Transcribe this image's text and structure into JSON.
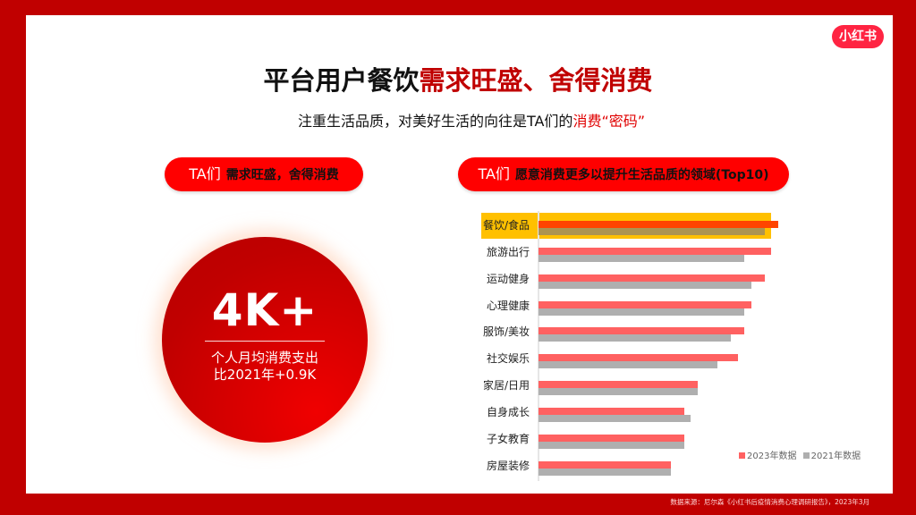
{
  "brand": {
    "logo_text": "小红书",
    "color": "#ff2442"
  },
  "colors": {
    "frame": "#c00000",
    "accent_red": "#ff0000",
    "bar_2023": "#ff6161",
    "bar_2021": "#afafaf",
    "highlight": "#ffc000"
  },
  "header": {
    "title_plain": "平台用户餐饮",
    "title_accent": "需求旺盛、舍得消费",
    "subtitle_plain": "注重生活品质，对美好生活的向往是TA们的",
    "subtitle_accent": "消费“密码”"
  },
  "left_section": {
    "pill_prefix": "TA们",
    "pill_text": "需求旺盛，舍得消费",
    "stat_value": "4K+",
    "stat_desc_line1": "个人月均消费支出",
    "stat_desc_line2": "比2021年+0.9K"
  },
  "right_section": {
    "pill_prefix": "TA们",
    "pill_text": "愿意消费更多以提升生活品质的领域(Top10)"
  },
  "chart_data": {
    "type": "bar",
    "orientation": "horizontal",
    "title": "TA们 愿意消费更多以提升生活品质的领域(Top10)",
    "xlabel": "",
    "ylabel": "",
    "axis_values_shown": false,
    "value_unit": "relative bar length (px, no axis scale shown)",
    "categories": [
      "餐饮/食品",
      "旅游出行",
      "运动健身",
      "心理健康",
      "服饰/美妆",
      "社交娱乐",
      "家居/日用",
      "自身成长",
      "子女教育",
      "房屋装修"
    ],
    "series": [
      {
        "name": "2023年数据",
        "color": "#ff6161",
        "values": [
          268,
          260,
          253,
          238,
          230,
          223,
          178,
          163,
          163,
          148
        ]
      },
      {
        "name": "2021年数据",
        "color": "#afafaf",
        "values": [
          253,
          230,
          238,
          230,
          215,
          200,
          178,
          170,
          163,
          148
        ]
      }
    ],
    "highlighted_category": "餐饮/食品",
    "legend_position": "bottom-right",
    "grid": false
  },
  "legend": [
    {
      "label": "2023年数据",
      "color": "#ff6161"
    },
    {
      "label": "2021年数据",
      "color": "#afafaf"
    }
  ],
  "footer": {
    "source": "数据来源：尼尔森《小红书后疫情消费心理调研报告》，2023年3月"
  }
}
